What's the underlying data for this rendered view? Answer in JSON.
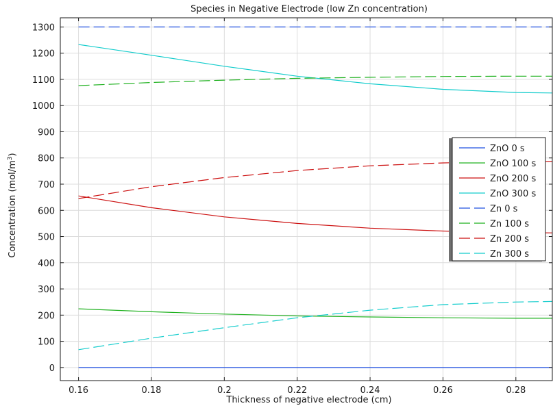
{
  "chart_data": {
    "type": "line",
    "title": "Species in Negative Electrode (low Zn concentration)",
    "xlabel": "Thickness of negative electrode (cm)",
    "ylabel": "Concentration (mol/m³)",
    "ylabel_base": "Concentration (mol/m",
    "ylabel_sup": "3",
    "ylabel_close": ")",
    "xlim": [
      0.155,
      0.29
    ],
    "ylim": [
      -50,
      1335
    ],
    "xticks": [
      0.16,
      0.18,
      0.2,
      0.22,
      0.24,
      0.26,
      0.28
    ],
    "xtick_labels": [
      "0.16",
      "0.18",
      "0.2",
      "0.22",
      "0.24",
      "0.26",
      "0.28"
    ],
    "yticks": [
      0,
      100,
      200,
      300,
      400,
      500,
      600,
      700,
      800,
      900,
      1000,
      1100,
      1200,
      1300
    ],
    "ytick_labels": [
      "0",
      "100",
      "200",
      "300",
      "400",
      "500",
      "600",
      "700",
      "800",
      "900",
      "1000",
      "1100",
      "1200",
      "1300"
    ],
    "grid": true,
    "legend_position": "right",
    "series": [
      {
        "name": "ZnO 0 s",
        "color": "#1f4fe0",
        "style": "solid",
        "x": [
          0.16,
          0.29
        ],
        "y": [
          0,
          0
        ]
      },
      {
        "name": "ZnO 100 s",
        "color": "#1fb11f",
        "style": "solid",
        "x": [
          0.16,
          0.18,
          0.2,
          0.22,
          0.24,
          0.26,
          0.28,
          0.29
        ],
        "y": [
          224,
          213,
          204,
          197,
          193,
          190,
          188,
          188
        ]
      },
      {
        "name": "ZnO 200 s",
        "color": "#cc1010",
        "style": "solid",
        "x": [
          0.16,
          0.18,
          0.2,
          0.22,
          0.24,
          0.26,
          0.28,
          0.29
        ],
        "y": [
          655,
          610,
          575,
          550,
          532,
          521,
          515,
          514
        ]
      },
      {
        "name": "ZnO 300 s",
        "color": "#12cccc",
        "style": "solid",
        "x": [
          0.16,
          0.18,
          0.2,
          0.22,
          0.24,
          0.26,
          0.28,
          0.29
        ],
        "y": [
          1233,
          1192,
          1150,
          1112,
          1083,
          1062,
          1050,
          1048
        ]
      },
      {
        "name": "Zn 0 s",
        "color": "#1f4fe0",
        "style": "dashed",
        "x": [
          0.16,
          0.29
        ],
        "y": [
          1300,
          1300
        ]
      },
      {
        "name": "Zn 100 s",
        "color": "#1fb11f",
        "style": "dashed",
        "x": [
          0.16,
          0.18,
          0.2,
          0.22,
          0.24,
          0.26,
          0.28,
          0.29
        ],
        "y": [
          1076,
          1088,
          1097,
          1104,
          1108,
          1111,
          1112,
          1112
        ]
      },
      {
        "name": "Zn 200 s",
        "color": "#cc1010",
        "style": "dashed",
        "x": [
          0.16,
          0.18,
          0.2,
          0.22,
          0.24,
          0.26,
          0.28,
          0.29
        ],
        "y": [
          645,
          690,
          725,
          752,
          770,
          781,
          786,
          787
        ]
      },
      {
        "name": "Zn 300 s",
        "color": "#12cccc",
        "style": "dashed",
        "x": [
          0.16,
          0.18,
          0.2,
          0.22,
          0.24,
          0.26,
          0.28,
          0.29
        ],
        "y": [
          68,
          112,
          152,
          190,
          219,
          240,
          250,
          252
        ]
      }
    ]
  }
}
